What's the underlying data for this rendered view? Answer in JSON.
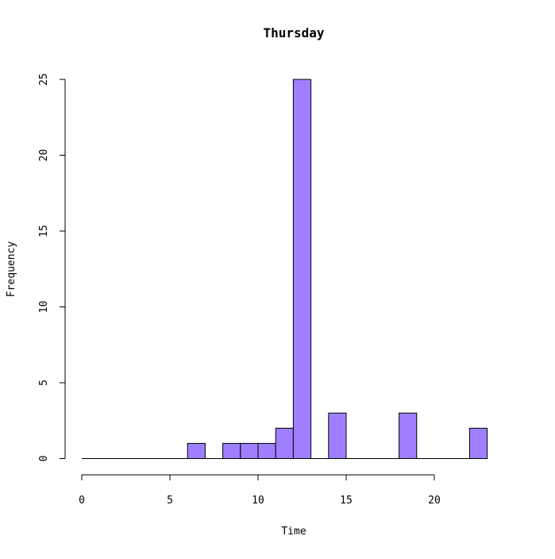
{
  "chart_data": {
    "type": "bar",
    "title": "Thursday",
    "xlabel": "Time",
    "ylabel": "Frequency",
    "xlim": [
      0,
      24
    ],
    "ylim": [
      0,
      25
    ],
    "x_ticks": [
      0,
      5,
      10,
      15,
      20
    ],
    "y_ticks": [
      0,
      5,
      10,
      15,
      20,
      25
    ],
    "bin_width": 1,
    "bins": [
      {
        "start": 0,
        "end": 1,
        "count": 0
      },
      {
        "start": 1,
        "end": 2,
        "count": 0
      },
      {
        "start": 2,
        "end": 3,
        "count": 0
      },
      {
        "start": 3,
        "end": 4,
        "count": 0
      },
      {
        "start": 4,
        "end": 5,
        "count": 0
      },
      {
        "start": 5,
        "end": 6,
        "count": 0
      },
      {
        "start": 6,
        "end": 7,
        "count": 1
      },
      {
        "start": 7,
        "end": 8,
        "count": 0
      },
      {
        "start": 8,
        "end": 9,
        "count": 1
      },
      {
        "start": 9,
        "end": 10,
        "count": 1
      },
      {
        "start": 10,
        "end": 11,
        "count": 1
      },
      {
        "start": 11,
        "end": 12,
        "count": 2
      },
      {
        "start": 12,
        "end": 13,
        "count": 25
      },
      {
        "start": 13,
        "end": 14,
        "count": 0
      },
      {
        "start": 14,
        "end": 15,
        "count": 3
      },
      {
        "start": 15,
        "end": 16,
        "count": 0
      },
      {
        "start": 16,
        "end": 17,
        "count": 0
      },
      {
        "start": 17,
        "end": 18,
        "count": 0
      },
      {
        "start": 18,
        "end": 19,
        "count": 3
      },
      {
        "start": 19,
        "end": 20,
        "count": 0
      },
      {
        "start": 20,
        "end": 21,
        "count": 0
      },
      {
        "start": 21,
        "end": 22,
        "count": 0
      },
      {
        "start": 22,
        "end": 23,
        "count": 2
      }
    ],
    "bar_fill": "#9f7fff",
    "bar_stroke": "#000000",
    "grid": false,
    "legend": "none"
  }
}
